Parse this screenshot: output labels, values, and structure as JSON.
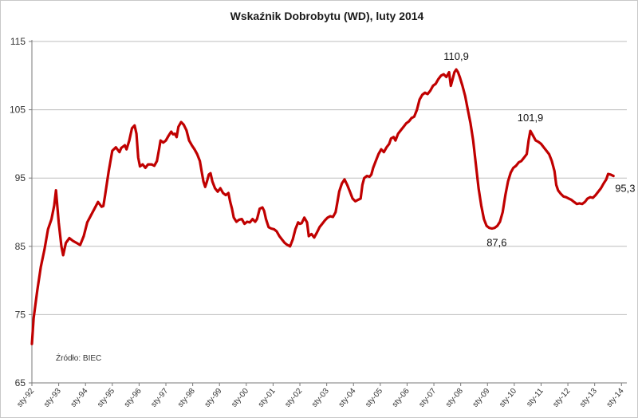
{
  "chart_data": {
    "type": "line",
    "title": "Wskaźnik Dobrobytu (WD), luty 2014",
    "source": "Źródło: BIEC",
    "ylim": [
      65,
      115
    ],
    "yticks": [
      65,
      75,
      85,
      95,
      105,
      115
    ],
    "grid": true,
    "line_color": "#c00000",
    "x_tick_labels": [
      "sty-92",
      "sty-93",
      "sty-94",
      "sty-95",
      "sty-96",
      "sty-97",
      "sty-98",
      "sty-99",
      "sty-00",
      "sty-01",
      "sty-02",
      "sty-03",
      "sty-04",
      "sty-05",
      "sty-06",
      "sty-07",
      "sty-08",
      "sty-09",
      "sty-10",
      "sty-11",
      "sty-12",
      "sty-13",
      "sty-14"
    ],
    "series": [
      {
        "name": "",
        "points": [
          [
            0.0,
            70.7
          ],
          [
            0.1,
            74.5
          ],
          [
            0.3,
            78.5
          ],
          [
            0.5,
            82
          ],
          [
            0.7,
            84.5
          ],
          [
            0.9,
            87.5
          ],
          [
            1.1,
            89
          ],
          [
            1.25,
            91
          ],
          [
            1.35,
            93.2
          ],
          [
            1.5,
            88.5
          ],
          [
            1.65,
            85
          ],
          [
            1.75,
            83.7
          ],
          [
            1.9,
            85.5
          ],
          [
            2.1,
            86.2
          ],
          [
            2.3,
            85.8
          ],
          [
            2.5,
            85.5
          ],
          [
            2.7,
            85.2
          ],
          [
            2.9,
            86.5
          ],
          [
            3.1,
            88.5
          ],
          [
            3.3,
            89.5
          ],
          [
            3.5,
            90.5
          ],
          [
            3.7,
            91.5
          ],
          [
            3.9,
            90.8
          ],
          [
            4.0,
            90.9
          ],
          [
            4.1,
            92.5
          ],
          [
            4.3,
            96
          ],
          [
            4.5,
            99
          ],
          [
            4.7,
            99.5
          ],
          [
            4.9,
            98.8
          ],
          [
            5.0,
            99.4
          ],
          [
            5.2,
            99.8
          ],
          [
            5.3,
            99.2
          ],
          [
            5.45,
            100.5
          ],
          [
            5.6,
            102.3
          ],
          [
            5.75,
            102.7
          ],
          [
            5.85,
            101.5
          ],
          [
            5.95,
            98
          ],
          [
            6.05,
            96.7
          ],
          [
            6.2,
            97
          ],
          [
            6.35,
            96.5
          ],
          [
            6.5,
            97
          ],
          [
            6.7,
            97
          ],
          [
            6.85,
            96.8
          ],
          [
            7.0,
            97.5
          ],
          [
            7.1,
            99
          ],
          [
            7.2,
            100.5
          ],
          [
            7.35,
            100.2
          ],
          [
            7.5,
            100.5
          ],
          [
            7.65,
            101.2
          ],
          [
            7.8,
            101.8
          ],
          [
            7.9,
            101.4
          ],
          [
            8.0,
            101.5
          ],
          [
            8.1,
            101
          ],
          [
            8.2,
            102.5
          ],
          [
            8.35,
            103.2
          ],
          [
            8.5,
            102.8
          ],
          [
            8.65,
            102
          ],
          [
            8.8,
            100.5
          ],
          [
            8.95,
            99.8
          ],
          [
            9.1,
            99.2
          ],
          [
            9.25,
            98.5
          ],
          [
            9.4,
            97.5
          ],
          [
            9.5,
            96
          ],
          [
            9.6,
            94.5
          ],
          [
            9.7,
            93.7
          ],
          [
            9.8,
            94.5
          ],
          [
            9.9,
            95.5
          ],
          [
            10.0,
            95.7
          ],
          [
            10.1,
            94.5
          ],
          [
            10.25,
            93.5
          ],
          [
            10.4,
            93
          ],
          [
            10.55,
            93.5
          ],
          [
            10.7,
            92.8
          ],
          [
            10.85,
            92.5
          ],
          [
            11.0,
            92.8
          ],
          [
            11.1,
            91.5
          ],
          [
            11.2,
            90.5
          ],
          [
            11.3,
            89.2
          ],
          [
            11.45,
            88.6
          ],
          [
            11.6,
            88.9
          ],
          [
            11.75,
            89
          ],
          [
            11.9,
            88.3
          ],
          [
            12.05,
            88.6
          ],
          [
            12.2,
            88.5
          ],
          [
            12.35,
            89
          ],
          [
            12.5,
            88.6
          ],
          [
            12.6,
            89
          ],
          [
            12.75,
            90.5
          ],
          [
            12.9,
            90.7
          ],
          [
            13.0,
            90.2
          ],
          [
            13.1,
            89
          ],
          [
            13.25,
            87.8
          ],
          [
            13.4,
            87.6
          ],
          [
            13.55,
            87.5
          ],
          [
            13.7,
            87.2
          ],
          [
            13.85,
            86.5
          ],
          [
            14.0,
            86
          ],
          [
            14.15,
            85.5
          ],
          [
            14.3,
            85.2
          ],
          [
            14.45,
            85
          ],
          [
            14.6,
            86
          ],
          [
            14.75,
            87.5
          ],
          [
            14.9,
            88.5
          ],
          [
            15.0,
            88.3
          ],
          [
            15.1,
            88.4
          ],
          [
            15.25,
            89.2
          ],
          [
            15.4,
            88.5
          ],
          [
            15.5,
            86.5
          ],
          [
            15.65,
            86.8
          ],
          [
            15.8,
            86.3
          ],
          [
            15.95,
            87
          ],
          [
            16.1,
            87.8
          ],
          [
            16.25,
            88.3
          ],
          [
            16.4,
            88.8
          ],
          [
            16.55,
            89.2
          ],
          [
            16.7,
            89.4
          ],
          [
            16.85,
            89.3
          ],
          [
            17.0,
            90
          ],
          [
            17.1,
            91.5
          ],
          [
            17.2,
            93
          ],
          [
            17.35,
            94.2
          ],
          [
            17.5,
            94.8
          ],
          [
            17.65,
            94
          ],
          [
            17.8,
            93
          ],
          [
            17.95,
            92
          ],
          [
            18.1,
            91.6
          ],
          [
            18.25,
            91.8
          ],
          [
            18.4,
            92
          ],
          [
            18.5,
            94
          ],
          [
            18.6,
            95
          ],
          [
            18.75,
            95.3
          ],
          [
            18.9,
            95.2
          ],
          [
            19.0,
            95.5
          ],
          [
            19.1,
            96.5
          ],
          [
            19.25,
            97.5
          ],
          [
            19.4,
            98.5
          ],
          [
            19.55,
            99.2
          ],
          [
            19.7,
            98.8
          ],
          [
            19.85,
            99.5
          ],
          [
            20.0,
            100
          ],
          [
            20.1,
            100.8
          ],
          [
            20.25,
            101
          ],
          [
            20.35,
            100.5
          ],
          [
            20.5,
            101.5
          ],
          [
            20.65,
            102
          ],
          [
            20.8,
            102.5
          ],
          [
            20.95,
            103
          ],
          [
            21.1,
            103.3
          ],
          [
            21.25,
            103.8
          ],
          [
            21.4,
            104
          ],
          [
            21.55,
            105
          ],
          [
            21.7,
            106.5
          ],
          [
            21.85,
            107.2
          ],
          [
            22.0,
            107.5
          ],
          [
            22.15,
            107.3
          ],
          [
            22.3,
            107.8
          ],
          [
            22.45,
            108.5
          ],
          [
            22.6,
            108.8
          ],
          [
            22.75,
            109.5
          ],
          [
            22.9,
            110
          ],
          [
            23.05,
            110.2
          ],
          [
            23.2,
            109.8
          ],
          [
            23.35,
            110.5
          ],
          [
            23.45,
            108.5
          ],
          [
            23.55,
            109.5
          ],
          [
            23.65,
            110.5
          ],
          [
            23.75,
            110.9
          ],
          [
            23.85,
            110.5
          ],
          [
            23.95,
            109.8
          ],
          [
            24.1,
            108.5
          ],
          [
            24.25,
            107
          ],
          [
            24.4,
            105
          ],
          [
            24.55,
            103
          ],
          [
            24.7,
            100.5
          ],
          [
            24.85,
            97
          ],
          [
            25.0,
            93.5
          ],
          [
            25.15,
            91
          ],
          [
            25.3,
            89
          ],
          [
            25.45,
            88
          ],
          [
            25.6,
            87.7
          ],
          [
            25.75,
            87.6
          ],
          [
            25.9,
            87.7
          ],
          [
            26.05,
            88
          ],
          [
            26.2,
            88.6
          ],
          [
            26.35,
            90
          ],
          [
            26.5,
            92.5
          ],
          [
            26.65,
            94.5
          ],
          [
            26.8,
            95.8
          ],
          [
            26.95,
            96.5
          ],
          [
            27.1,
            96.8
          ],
          [
            27.25,
            97.3
          ],
          [
            27.4,
            97.5
          ],
          [
            27.55,
            98
          ],
          [
            27.7,
            98.5
          ],
          [
            27.8,
            100.5
          ],
          [
            27.9,
            101.9
          ],
          [
            28.05,
            101.2
          ],
          [
            28.2,
            100.5
          ],
          [
            28.35,
            100.3
          ],
          [
            28.5,
            100
          ],
          [
            28.65,
            99.5
          ],
          [
            28.8,
            99
          ],
          [
            28.95,
            98.5
          ],
          [
            29.1,
            97.5
          ],
          [
            29.25,
            96
          ],
          [
            29.35,
            94
          ],
          [
            29.45,
            93.2
          ],
          [
            29.6,
            92.7
          ],
          [
            29.75,
            92.3
          ],
          [
            29.9,
            92.2
          ],
          [
            30.05,
            92
          ],
          [
            30.2,
            91.8
          ],
          [
            30.35,
            91.5
          ],
          [
            30.5,
            91.2
          ],
          [
            30.65,
            91.3
          ],
          [
            30.8,
            91.2
          ],
          [
            30.95,
            91.5
          ],
          [
            31.1,
            92
          ],
          [
            31.25,
            92.2
          ],
          [
            31.4,
            92.1
          ],
          [
            31.55,
            92.5
          ],
          [
            31.7,
            93
          ],
          [
            31.85,
            93.5
          ],
          [
            32.0,
            94.2
          ],
          [
            32.15,
            94.8
          ],
          [
            32.25,
            95.6
          ],
          [
            32.4,
            95.5
          ],
          [
            32.55,
            95.3
          ]
        ]
      }
    ],
    "x_domain": [
      0,
      33.3
    ],
    "annotations": [
      {
        "text": "110,9",
        "x": 23.75,
        "y": 110.9,
        "pos": "above"
      },
      {
        "text": "101,9",
        "x": 27.9,
        "y": 101.9,
        "pos": "above"
      },
      {
        "text": "87,6",
        "x": 25.75,
        "y": 87.6,
        "pos": "below"
      },
      {
        "text": "95,3",
        "x": 32.55,
        "y": 95.3,
        "pos": "below-right"
      }
    ]
  }
}
